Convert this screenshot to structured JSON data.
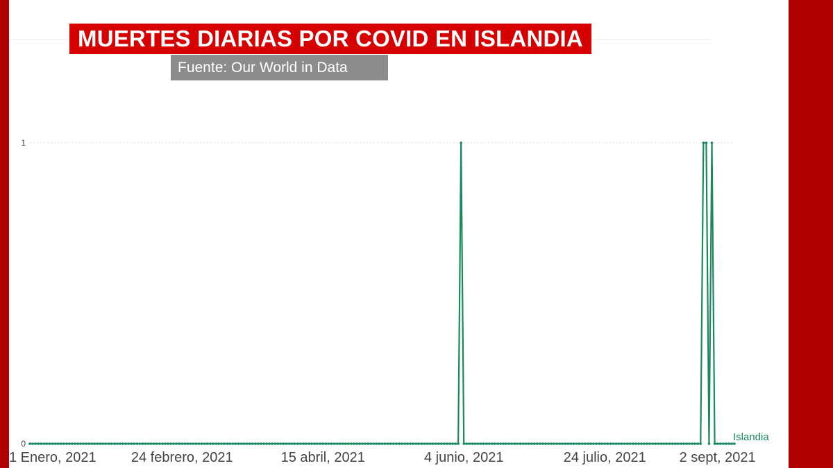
{
  "header": {
    "title": "MUERTES DIARIAS POR COVID EN ISLANDIA",
    "source": "Fuente: Our World in Data"
  },
  "colors": {
    "frame": "#b00000",
    "title_bg": "#d60000",
    "source_bg": "#8c8c8c",
    "series": "#1a8a5c",
    "grid": "#d8d8d8",
    "tick_text": "#444444"
  },
  "chart_data": {
    "type": "line",
    "title": "MUERTES DIARIAS POR COVID EN ISLANDIA",
    "xlabel": "",
    "ylabel": "",
    "x_range": [
      "2021-01-01",
      "2021-09-08"
    ],
    "ylim": [
      0,
      1
    ],
    "y_ticks": [
      0,
      1
    ],
    "x_ticks": [
      {
        "date": "2021-01-01",
        "label": "1 Enero, 2021"
      },
      {
        "date": "2021-02-24",
        "label": "24 febrero, 2021"
      },
      {
        "date": "2021-04-15",
        "label": "15 abril, 2021"
      },
      {
        "date": "2021-06-04",
        "label": "4 junio, 2021"
      },
      {
        "date": "2021-07-24",
        "label": "24 julio, 2021"
      },
      {
        "date": "2021-09-02",
        "label": "2 sept, 2021"
      }
    ],
    "grid": "horizontal dotted",
    "legend": "series label at end of line",
    "series": [
      {
        "name": "Islandia",
        "baseline": 0,
        "start": "2021-01-01",
        "end": "2021-09-08",
        "nonzero": [
          {
            "date": "2021-06-03",
            "value": 1
          },
          {
            "date": "2021-08-28",
            "value": 1
          },
          {
            "date": "2021-08-29",
            "value": 1
          },
          {
            "date": "2021-08-31",
            "value": 1
          }
        ]
      }
    ]
  }
}
